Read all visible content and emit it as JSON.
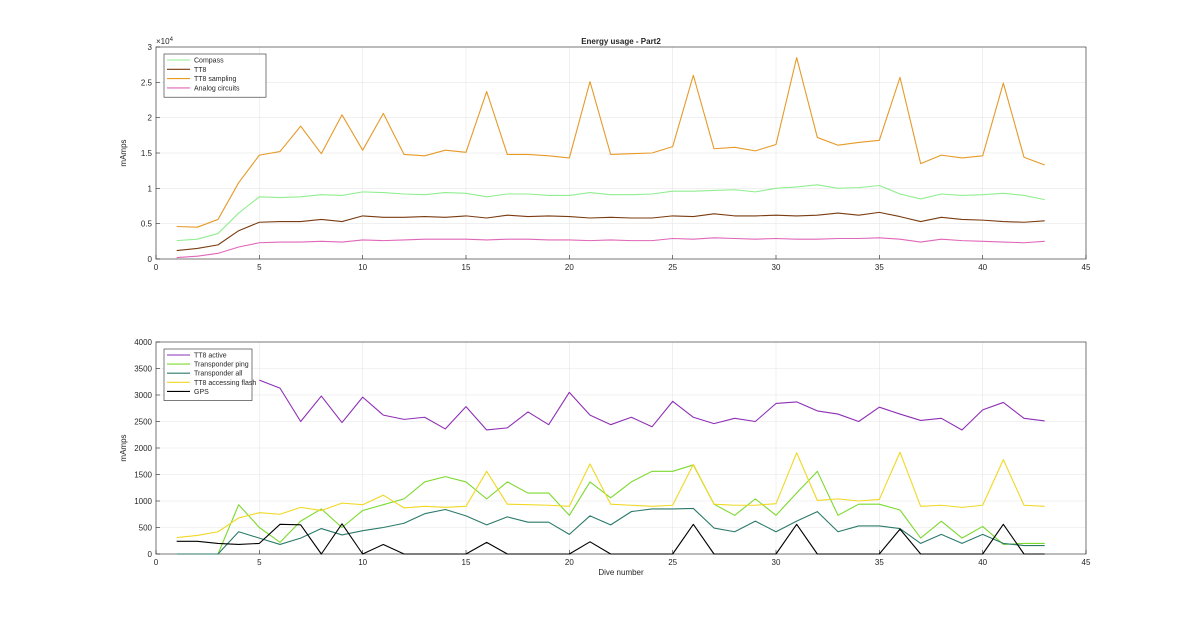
{
  "chart_data": [
    {
      "type": "line",
      "title": "Energy usage - Part2",
      "xlabel": "",
      "ylabel": "mAmps",
      "exponent_label": "×10",
      "exponent_power": "4",
      "xlim": [
        0,
        45
      ],
      "ylim": [
        0,
        3
      ],
      "xticks": [
        0,
        5,
        10,
        15,
        20,
        25,
        30,
        35,
        40,
        45
      ],
      "yticks": [
        0,
        0.5,
        1,
        1.5,
        2,
        2.5,
        3
      ],
      "ytick_labels": [
        "0",
        "0.5",
        "1",
        "1.5",
        "2",
        "2.5",
        "3"
      ],
      "grid": true,
      "legend_position": "top-left",
      "x": [
        1,
        2,
        3,
        4,
        5,
        6,
        7,
        8,
        9,
        10,
        11,
        12,
        13,
        14,
        15,
        16,
        17,
        18,
        19,
        20,
        21,
        22,
        23,
        24,
        25,
        26,
        27,
        28,
        29,
        30,
        31,
        32,
        33,
        34,
        35,
        36,
        37,
        38,
        39,
        40,
        41,
        42,
        43
      ],
      "series": [
        {
          "name": "Compass",
          "color": "#90ee90",
          "values": [
            0.26,
            0.28,
            0.36,
            0.65,
            0.88,
            0.87,
            0.88,
            0.91,
            0.9,
            0.95,
            0.94,
            0.92,
            0.91,
            0.94,
            0.93,
            0.88,
            0.92,
            0.92,
            0.9,
            0.9,
            0.94,
            0.91,
            0.91,
            0.92,
            0.96,
            0.96,
            0.97,
            0.98,
            0.95,
            1.0,
            1.02,
            1.05,
            1.0,
            1.01,
            1.04,
            0.92,
            0.85,
            0.92,
            0.9,
            0.91,
            0.93,
            0.9,
            0.84
          ]
        },
        {
          "name": "TT8",
          "color": "#7a3b10",
          "values": [
            0.12,
            0.15,
            0.2,
            0.4,
            0.52,
            0.53,
            0.53,
            0.56,
            0.53,
            0.61,
            0.59,
            0.59,
            0.6,
            0.59,
            0.61,
            0.58,
            0.62,
            0.6,
            0.61,
            0.6,
            0.58,
            0.59,
            0.58,
            0.58,
            0.61,
            0.6,
            0.64,
            0.61,
            0.61,
            0.62,
            0.61,
            0.62,
            0.65,
            0.62,
            0.66,
            0.6,
            0.53,
            0.59,
            0.56,
            0.55,
            0.53,
            0.52,
            0.54
          ]
        },
        {
          "name": "TT8 sampling",
          "color": "#e69a28",
          "values": [
            0.46,
            0.45,
            0.56,
            1.08,
            1.47,
            1.52,
            1.88,
            1.49,
            2.04,
            1.54,
            2.06,
            1.48,
            1.46,
            1.54,
            1.51,
            2.37,
            1.48,
            1.48,
            1.46,
            1.43,
            2.51,
            1.48,
            1.49,
            1.5,
            1.59,
            2.6,
            1.56,
            1.58,
            1.53,
            1.62,
            2.85,
            1.72,
            1.61,
            1.65,
            1.68,
            2.57,
            1.35,
            1.47,
            1.43,
            1.46,
            2.49,
            1.44,
            1.33
          ]
        },
        {
          "name": "Analog circuits",
          "color": "#e066b8",
          "values": [
            0.02,
            0.04,
            0.08,
            0.17,
            0.23,
            0.24,
            0.24,
            0.25,
            0.24,
            0.27,
            0.26,
            0.27,
            0.28,
            0.28,
            0.28,
            0.27,
            0.28,
            0.28,
            0.27,
            0.27,
            0.26,
            0.27,
            0.26,
            0.26,
            0.29,
            0.28,
            0.3,
            0.29,
            0.28,
            0.29,
            0.28,
            0.28,
            0.29,
            0.29,
            0.3,
            0.28,
            0.24,
            0.28,
            0.26,
            0.25,
            0.24,
            0.23,
            0.25
          ]
        }
      ]
    },
    {
      "type": "line",
      "title": "",
      "xlabel": "Dive number",
      "ylabel": "mAmps",
      "xlim": [
        0,
        45
      ],
      "ylim": [
        0,
        4000
      ],
      "xticks": [
        0,
        5,
        10,
        15,
        20,
        25,
        30,
        35,
        40,
        45
      ],
      "yticks": [
        0,
        500,
        1000,
        1500,
        2000,
        2500,
        3000,
        3500,
        4000
      ],
      "ytick_labels": [
        "0",
        "500",
        "1000",
        "1500",
        "2000",
        "2500",
        "3000",
        "3500",
        "4000"
      ],
      "grid": true,
      "legend_position": "top-left",
      "x": [
        1,
        2,
        3,
        4,
        5,
        6,
        7,
        8,
        9,
        10,
        11,
        12,
        13,
        14,
        15,
        16,
        17,
        18,
        19,
        20,
        21,
        22,
        23,
        24,
        25,
        26,
        27,
        28,
        29,
        30,
        31,
        32,
        33,
        34,
        35,
        36,
        37,
        38,
        39,
        40,
        41,
        42,
        43
      ],
      "series": [
        {
          "name": "TT8 active",
          "color": "#8e2fb5",
          "values": [
            null,
            null,
            null,
            null,
            3280,
            3130,
            2500,
            2980,
            2480,
            2960,
            2620,
            2540,
            2580,
            2360,
            2780,
            2340,
            2380,
            2680,
            2440,
            3050,
            2620,
            2440,
            2580,
            2400,
            2880,
            2580,
            2460,
            2560,
            2500,
            2840,
            2870,
            2700,
            2640,
            2500,
            2770,
            2640,
            2520,
            2560,
            2340,
            2720,
            2860,
            2560,
            2510
          ]
        },
        {
          "name": "Transponder ping",
          "color": "#7cd92e",
          "values": [
            0,
            0,
            0,
            930,
            500,
            220,
            620,
            850,
            500,
            820,
            930,
            1040,
            1360,
            1460,
            1360,
            1040,
            1360,
            1150,
            1150,
            730,
            1360,
            1060,
            1360,
            1560,
            1560,
            1680,
            940,
            730,
            1040,
            730,
            1150,
            1560,
            730,
            940,
            940,
            830,
            300,
            620,
            300,
            520,
            180,
            200,
            200
          ]
        },
        {
          "name": "Transponder all",
          "color": "#2b7a6a",
          "values": [
            0,
            0,
            0,
            420,
            300,
            180,
            300,
            480,
            360,
            440,
            500,
            580,
            760,
            840,
            720,
            550,
            700,
            600,
            600,
            370,
            720,
            550,
            800,
            850,
            850,
            860,
            490,
            420,
            620,
            420,
            620,
            800,
            420,
            530,
            530,
            480,
            200,
            370,
            200,
            370,
            200,
            160,
            160
          ]
        },
        {
          "name": "TT8 accessing flash",
          "color": "#f0d824",
          "values": [
            310,
            350,
            420,
            680,
            780,
            750,
            880,
            820,
            960,
            930,
            1110,
            870,
            900,
            880,
            900,
            1560,
            940,
            930,
            920,
            900,
            1700,
            940,
            920,
            900,
            920,
            1690,
            940,
            920,
            920,
            950,
            1910,
            1010,
            1040,
            1000,
            1030,
            1920,
            900,
            920,
            880,
            920,
            1780,
            920,
            900
          ]
        },
        {
          "name": "GPS",
          "color": "#000000",
          "values": [
            240,
            240,
            200,
            180,
            200,
            560,
            550,
            0,
            570,
            0,
            180,
            0,
            0,
            0,
            0,
            220,
            0,
            0,
            0,
            0,
            230,
            0,
            0,
            0,
            0,
            560,
            0,
            0,
            0,
            0,
            560,
            0,
            0,
            0,
            0,
            470,
            0,
            0,
            0,
            0,
            560,
            0,
            0
          ]
        }
      ]
    }
  ]
}
